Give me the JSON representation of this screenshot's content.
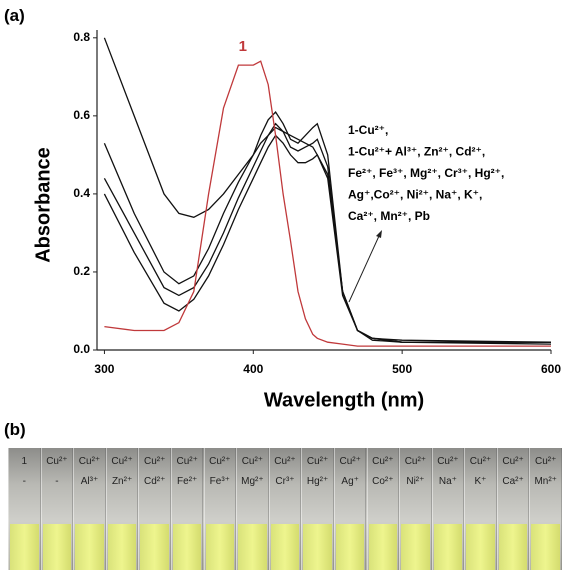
{
  "chart_data": {
    "type": "line",
    "panel_label": "(a)",
    "xlabel": "Wavelength (nm)",
    "ylabel": "Absorbance",
    "x": [
      300,
      320,
      340,
      350,
      360,
      370,
      380,
      390,
      400,
      405,
      410,
      415,
      420,
      425,
      430,
      435,
      440,
      443,
      450,
      460,
      470,
      480,
      500,
      600
    ],
    "xlim": [
      295,
      600
    ],
    "xticks": [
      300,
      400,
      500,
      600
    ],
    "ylim": [
      0,
      0.82
    ],
    "yticks": [
      {
        "value": 0,
        "label": "0.0"
      },
      0.2,
      0.4,
      0.6,
      0.8
    ],
    "series": [
      {
        "name": "1",
        "color": "#c0393b",
        "values": [
          0.06,
          0.05,
          0.05,
          0.07,
          0.15,
          0.4,
          0.62,
          0.73,
          0.73,
          0.74,
          0.68,
          0.55,
          0.4,
          0.28,
          0.15,
          0.08,
          0.04,
          0.03,
          0.02,
          0.015,
          0.01,
          0.01,
          0.01,
          0.01
        ]
      },
      {
        "color": "#111111",
        "values": [
          0.8,
          0.6,
          0.4,
          0.35,
          0.34,
          0.36,
          0.4,
          0.45,
          0.5,
          0.53,
          0.55,
          0.57,
          0.56,
          0.55,
          0.54,
          0.53,
          0.52,
          0.5,
          0.45,
          0.15,
          0.05,
          0.03,
          0.025,
          0.02
        ]
      },
      {
        "color": "#111111",
        "values": [
          0.53,
          0.35,
          0.2,
          0.17,
          0.19,
          0.26,
          0.35,
          0.43,
          0.5,
          0.55,
          0.59,
          0.61,
          0.58,
          0.54,
          0.53,
          0.55,
          0.57,
          0.58,
          0.5,
          0.15,
          0.05,
          0.03,
          0.02,
          0.02
        ]
      },
      {
        "color": "#111111",
        "values": [
          0.44,
          0.3,
          0.16,
          0.14,
          0.16,
          0.22,
          0.3,
          0.39,
          0.47,
          0.51,
          0.55,
          0.58,
          0.56,
          0.52,
          0.51,
          0.52,
          0.53,
          0.54,
          0.47,
          0.15,
          0.05,
          0.03,
          0.02,
          0.02
        ]
      },
      {
        "color": "#111111",
        "values": [
          0.4,
          0.25,
          0.12,
          0.1,
          0.13,
          0.19,
          0.27,
          0.36,
          0.44,
          0.48,
          0.52,
          0.55,
          0.53,
          0.5,
          0.48,
          0.48,
          0.49,
          0.5,
          0.44,
          0.14,
          0.05,
          0.025,
          0.02,
          0.015
        ]
      }
    ],
    "annotation": [
      "1-Cu²⁺,",
      "1-Cu²⁺+ Al³⁺, Zn²⁺, Cd²⁺,",
      "Fe²⁺, Fe³⁺, Mg²⁺, Cr³⁺, Hg²⁺,",
      "Ag⁺,Co²⁺, Ni²⁺, Na⁺, K⁺,",
      "Ca²⁺, Mn²⁺, Pb"
    ]
  },
  "photo": {
    "panel_label": "(b)",
    "vials": [
      {
        "top": "1",
        "bottom": "-"
      },
      {
        "top": "Cu²⁺",
        "bottom": "-"
      },
      {
        "top": "Cu²⁺",
        "bottom": "Al³⁺"
      },
      {
        "top": "Cu²⁺",
        "bottom": "Zn²⁺"
      },
      {
        "top": "Cu²⁺",
        "bottom": "Cd²⁺"
      },
      {
        "top": "Cu²⁺",
        "bottom": "Fe²⁺"
      },
      {
        "top": "Cu²⁺",
        "bottom": "Fe³⁺"
      },
      {
        "top": "Cu²⁺",
        "bottom": "Mg²⁺"
      },
      {
        "top": "Cu²⁺",
        "bottom": "Cr³⁺"
      },
      {
        "top": "Cu²⁺",
        "bottom": "Hg²⁺"
      },
      {
        "top": "Cu²⁺",
        "bottom": "Ag⁺"
      },
      {
        "top": "Cu²⁺",
        "bottom": "Co²⁺"
      },
      {
        "top": "Cu²⁺",
        "bottom": "Ni²⁺"
      },
      {
        "top": "Cu²⁺",
        "bottom": "Na⁺"
      },
      {
        "top": "Cu²⁺",
        "bottom": "K⁺"
      },
      {
        "top": "Cu²⁺",
        "bottom": "Ca²⁺"
      },
      {
        "top": "Cu²⁺",
        "bottom": "Mn²⁺"
      }
    ]
  }
}
